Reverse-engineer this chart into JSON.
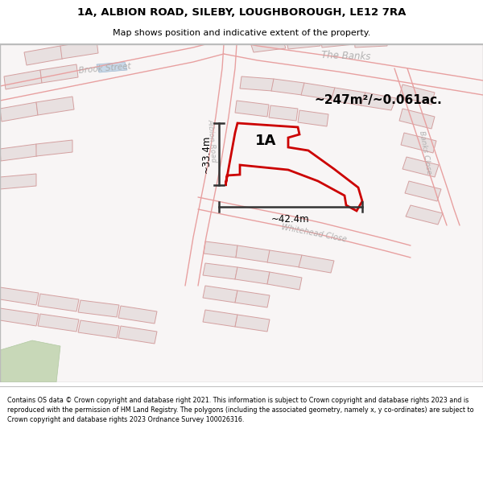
{
  "title_line1": "1A, ALBION ROAD, SILEBY, LOUGHBOROUGH, LE12 7RA",
  "title_line2": "Map shows position and indicative extent of the property.",
  "footer_text": "Contains OS data © Crown copyright and database right 2021. This information is subject to Crown copyright and database rights 2023 and is reproduced with the permission of HM Land Registry. The polygons (including the associated geometry, namely x, y co-ordinates) are subject to Crown copyright and database rights 2023 Ordnance Survey 100026316.",
  "area_label": "~247m²/~0.061ac.",
  "property_label": "1A",
  "dim_width": "~42.4m",
  "dim_height": "~33.4m",
  "road_outline_color": "#e8a0a0",
  "building_fill": "#e8e0e0",
  "building_edge": "#d4a0a0",
  "property_outline_color": "#cc0000",
  "dim_line_color": "#333333",
  "road_label_color": "#aaaaaa",
  "map_bg": "#f8f5f5",
  "white": "#ffffff"
}
